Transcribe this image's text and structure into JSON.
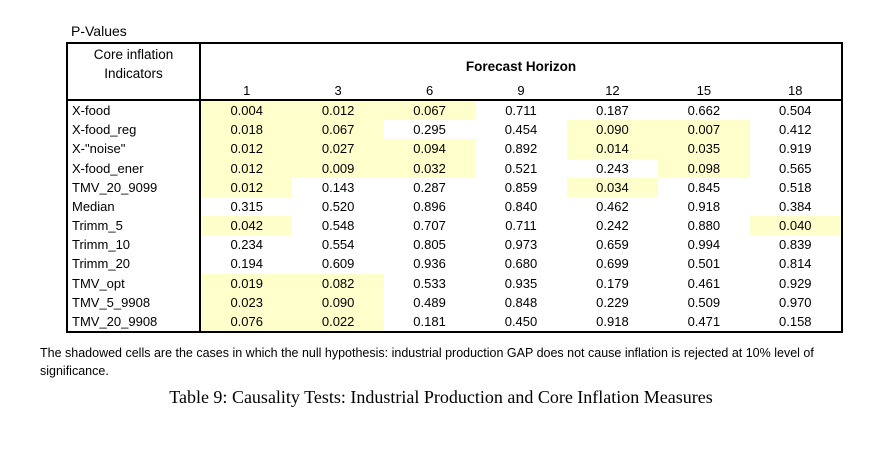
{
  "page": {
    "pretitle": "P-Values",
    "footnote_lines": [
      "The shadowed cells are the cases in which the null hypothesis: industrial production GAP does not cause inflation is rejected at 10% level of",
      "significance."
    ],
    "caption": "Table 9: Causality Tests: Industrial Production and Core Inflation Measures"
  },
  "table": {
    "corner_line1": "Core inflation",
    "corner_line2": "Indicators",
    "group_header": "Forecast Horizon",
    "horizons": [
      "1",
      "3",
      "6",
      "9",
      "12",
      "15",
      "18"
    ],
    "highlight_color": "#FFFFCC",
    "rows": [
      {
        "label": "X-food",
        "values": [
          "0.004",
          "0.012",
          "0.067",
          "0.711",
          "0.187",
          "0.662",
          "0.504"
        ],
        "highlighted": [
          true,
          true,
          true,
          false,
          false,
          false,
          false
        ]
      },
      {
        "label": "X-food_reg",
        "values": [
          "0.018",
          "0.067",
          "0.295",
          "0.454",
          "0.090",
          "0.007",
          "0.412"
        ],
        "highlighted": [
          true,
          true,
          false,
          false,
          true,
          true,
          false
        ]
      },
      {
        "label": "X-\"noise\"",
        "values": [
          "0.012",
          "0.027",
          "0.094",
          "0.892",
          "0.014",
          "0.035",
          "0.919"
        ],
        "highlighted": [
          true,
          true,
          true,
          false,
          true,
          true,
          false
        ]
      },
      {
        "label": "X-food_ener",
        "values": [
          "0.012",
          "0.009",
          "0.032",
          "0.521",
          "0.243",
          "0.098",
          "0.565"
        ],
        "highlighted": [
          true,
          true,
          true,
          false,
          false,
          true,
          false
        ]
      },
      {
        "label": "TMV_20_9099",
        "values": [
          "0.012",
          "0.143",
          "0.287",
          "0.859",
          "0.034",
          "0.845",
          "0.518"
        ],
        "highlighted": [
          true,
          false,
          false,
          false,
          true,
          false,
          false
        ]
      },
      {
        "label": "Median",
        "values": [
          "0.315",
          "0.520",
          "0.896",
          "0.840",
          "0.462",
          "0.918",
          "0.384"
        ],
        "highlighted": [
          false,
          false,
          false,
          false,
          false,
          false,
          false
        ]
      },
      {
        "label": "Trimm_5",
        "values": [
          "0.042",
          "0.548",
          "0.707",
          "0.711",
          "0.242",
          "0.880",
          "0.040"
        ],
        "highlighted": [
          true,
          false,
          false,
          false,
          false,
          false,
          true
        ]
      },
      {
        "label": "Trimm_10",
        "values": [
          "0.234",
          "0.554",
          "0.805",
          "0.973",
          "0.659",
          "0.994",
          "0.839"
        ],
        "highlighted": [
          false,
          false,
          false,
          false,
          false,
          false,
          false
        ]
      },
      {
        "label": "Trimm_20",
        "values": [
          "0.194",
          "0.609",
          "0.936",
          "0.680",
          "0.699",
          "0.501",
          "0.814"
        ],
        "highlighted": [
          false,
          false,
          false,
          false,
          false,
          false,
          false
        ]
      },
      {
        "label": "TMV_opt",
        "values": [
          "0.019",
          "0.082",
          "0.533",
          "0.935",
          "0.179",
          "0.461",
          "0.929"
        ],
        "highlighted": [
          true,
          true,
          false,
          false,
          false,
          false,
          false
        ]
      },
      {
        "label": "TMV_5_9908",
        "values": [
          "0.023",
          "0.090",
          "0.489",
          "0.848",
          "0.229",
          "0.509",
          "0.970"
        ],
        "highlighted": [
          true,
          true,
          false,
          false,
          false,
          false,
          false
        ]
      },
      {
        "label": "TMV_20_9908",
        "values": [
          "0.076",
          "0.022",
          "0.181",
          "0.450",
          "0.918",
          "0.471",
          "0.158"
        ],
        "highlighted": [
          true,
          true,
          false,
          false,
          false,
          false,
          false
        ]
      }
    ]
  }
}
